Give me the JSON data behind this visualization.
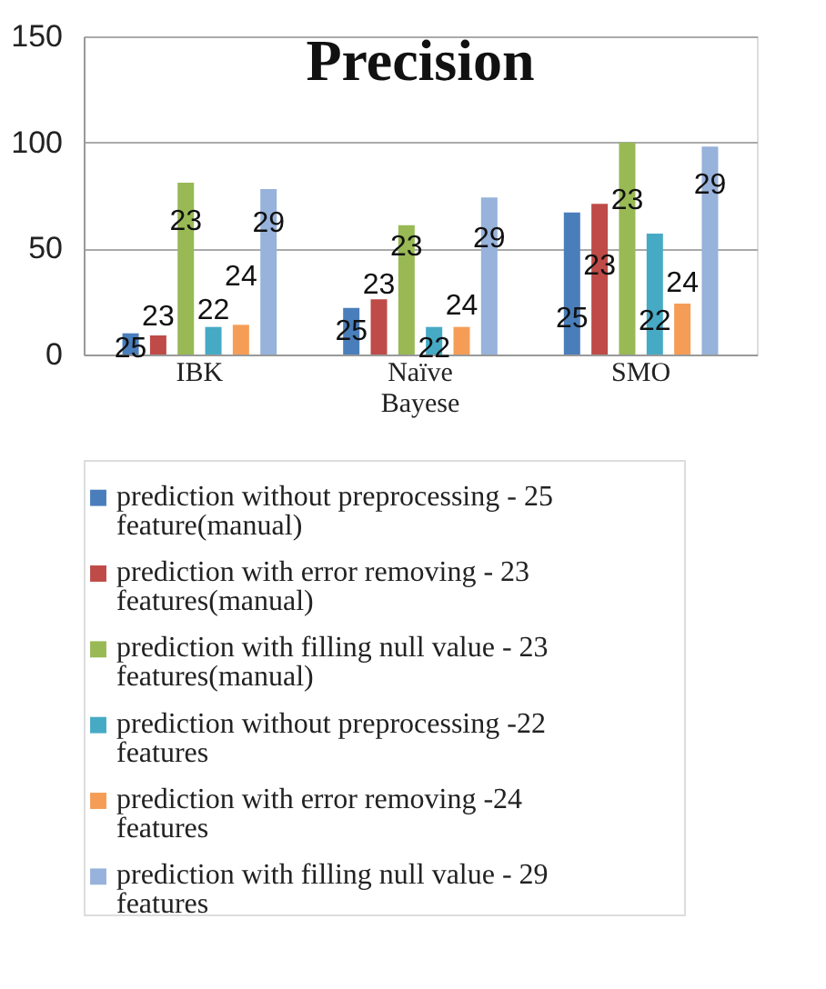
{
  "chart_data": {
    "type": "bar",
    "title": "Precision",
    "categories": [
      "IBK",
      "Naïve Bayese",
      "SMO"
    ],
    "series": [
      {
        "name": "prediction without  preprocessing - 25 feature(manual)",
        "color": "#4a7ebb",
        "values": [
          10,
          22,
          67
        ]
      },
      {
        "name": "prediction with error removing - 23 features(manual)",
        "color": "#be4b48",
        "values": [
          9,
          26,
          71
        ]
      },
      {
        "name": "prediction with filling null value - 23 features(manual)",
        "color": "#98b954",
        "values": [
          81,
          61,
          100
        ]
      },
      {
        "name": "prediction without  preprocessing -22 features",
        "color": "#46aac5",
        "values": [
          13,
          13,
          57
        ]
      },
      {
        "name": "prediction with error removing -24 features",
        "color": "#f59d56",
        "values": [
          14,
          13,
          24
        ]
      },
      {
        "name": "prediction with filling null value - 29 features",
        "color": "#97b2db",
        "values": [
          78,
          74,
          98
        ]
      }
    ],
    "annotations": [
      {
        "text": "25",
        "x": "IBK",
        "y": 3
      },
      {
        "text": "23",
        "x": "IBK",
        "y": 18
      },
      {
        "text": "23",
        "x": "IBK",
        "y": 63
      },
      {
        "text": "22",
        "x": "IBK",
        "y": 21
      },
      {
        "text": "24",
        "x": "IBK",
        "y": 37
      },
      {
        "text": "29",
        "x": "IBK",
        "y": 62
      },
      {
        "text": "25",
        "x": "Naïve Bayese",
        "y": 11
      },
      {
        "text": "23",
        "x": "Naïve Bayese",
        "y": 33
      },
      {
        "text": "23",
        "x": "Naïve Bayese",
        "y": 51
      },
      {
        "text": "22",
        "x": "Naïve Bayese",
        "y": 3
      },
      {
        "text": "24",
        "x": "Naïve Bayese",
        "y": 23
      },
      {
        "text": "29",
        "x": "Naïve Bayese",
        "y": 55
      },
      {
        "text": "25",
        "x": "SMO",
        "y": 17
      },
      {
        "text": "23",
        "x": "SMO",
        "y": 42
      },
      {
        "text": "23",
        "x": "SMO",
        "y": 73
      },
      {
        "text": "22",
        "x": "SMO",
        "y": 16
      },
      {
        "text": "24",
        "x": "SMO",
        "y": 34
      },
      {
        "text": "29",
        "x": "SMO",
        "y": 80
      }
    ],
    "ylim": [
      0,
      150
    ],
    "yticks": [
      0,
      50,
      100,
      150
    ],
    "grid": "y",
    "legend": "bottom"
  }
}
